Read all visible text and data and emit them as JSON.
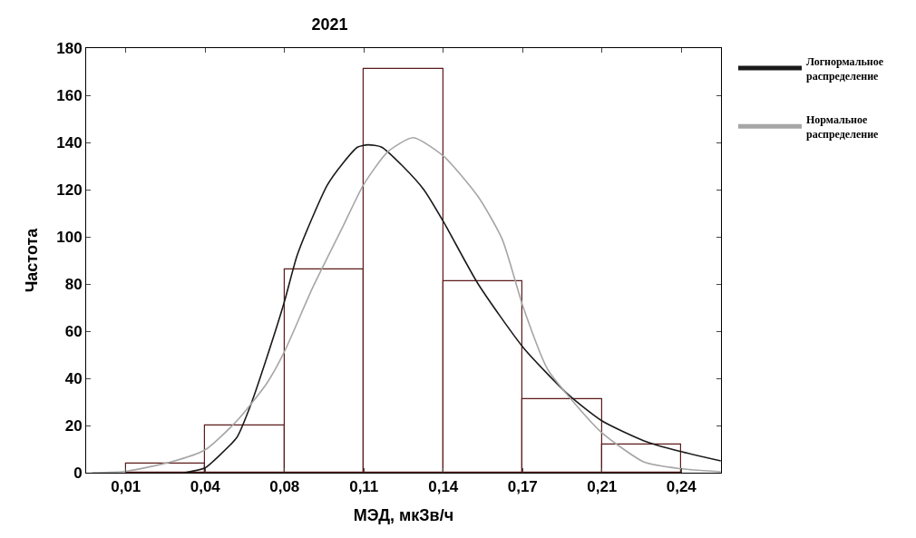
{
  "chart_data": {
    "type": "histogram",
    "title": "2021",
    "xlabel": "МЭД, мкЗв/ч",
    "ylabel": "Частота",
    "bins": [
      0.0095,
      0.0425,
      0.0755,
      0.1085,
      0.1415,
      0.1745,
      0.2075,
      0.2405
    ],
    "values": [
      4,
      20,
      86,
      171,
      81,
      31,
      12
    ],
    "color": "#5c1a1a",
    "series": [
      {
        "name": "Логнормальное распределение",
        "type": "line",
        "color": "#1a1a1a",
        "x": [
          0.034,
          0.0424,
          0.0481,
          0.0557,
          0.0619,
          0.0682,
          0.0753,
          0.0807,
          0.087,
          0.0933,
          0.0996,
          0.1058,
          0.1102,
          0.1159,
          0.1246,
          0.1334,
          0.1418,
          0.156,
          0.1748,
          0.1936,
          0.2074,
          0.225,
          0.24,
          0.2569
        ],
        "values": [
          0,
          2,
          7,
          15,
          30,
          49,
          72,
          92,
          108,
          122,
          131,
          138,
          139,
          138,
          130,
          120,
          106,
          80,
          53,
          33,
          22,
          13.5,
          9,
          5
        ]
      },
      {
        "name": "Нормальное распределение",
        "type": "line",
        "color": "#a6a6a6",
        "x": [
          -0.0045,
          0.0095,
          0.0281,
          0.0424,
          0.0557,
          0.0682,
          0.0753,
          0.087,
          0.0996,
          0.1083,
          0.1184,
          0.129,
          0.1418,
          0.156,
          0.166,
          0.1748,
          0.1848,
          0.1948,
          0.2074,
          0.225,
          0.24,
          0.2569
        ],
        "values": [
          0,
          0.6,
          4.5,
          9.6,
          22,
          38,
          51,
          78,
          104,
          122,
          136,
          142,
          134,
          117,
          99,
          70,
          44,
          31,
          17,
          4.5,
          1.7,
          0.4
        ]
      }
    ],
    "xlim": [
      -0.007,
      0.257
    ],
    "xticks": [
      {
        "value": 0.0095,
        "label": "0,01"
      },
      {
        "value": 0.0425,
        "label": "0,04"
      },
      {
        "value": 0.0755,
        "label": "0,08"
      },
      {
        "value": 0.1085,
        "label": "0,11"
      },
      {
        "value": 0.1415,
        "label": "0,14"
      },
      {
        "value": 0.1745,
        "label": "0,17"
      },
      {
        "value": 0.2075,
        "label": "0,21"
      },
      {
        "value": 0.2405,
        "label": "0,24"
      }
    ],
    "ylim": [
      0,
      180
    ],
    "yticks": [
      0,
      20,
      40,
      60,
      80,
      100,
      120,
      140,
      160,
      180
    ],
    "legend": "top right"
  }
}
